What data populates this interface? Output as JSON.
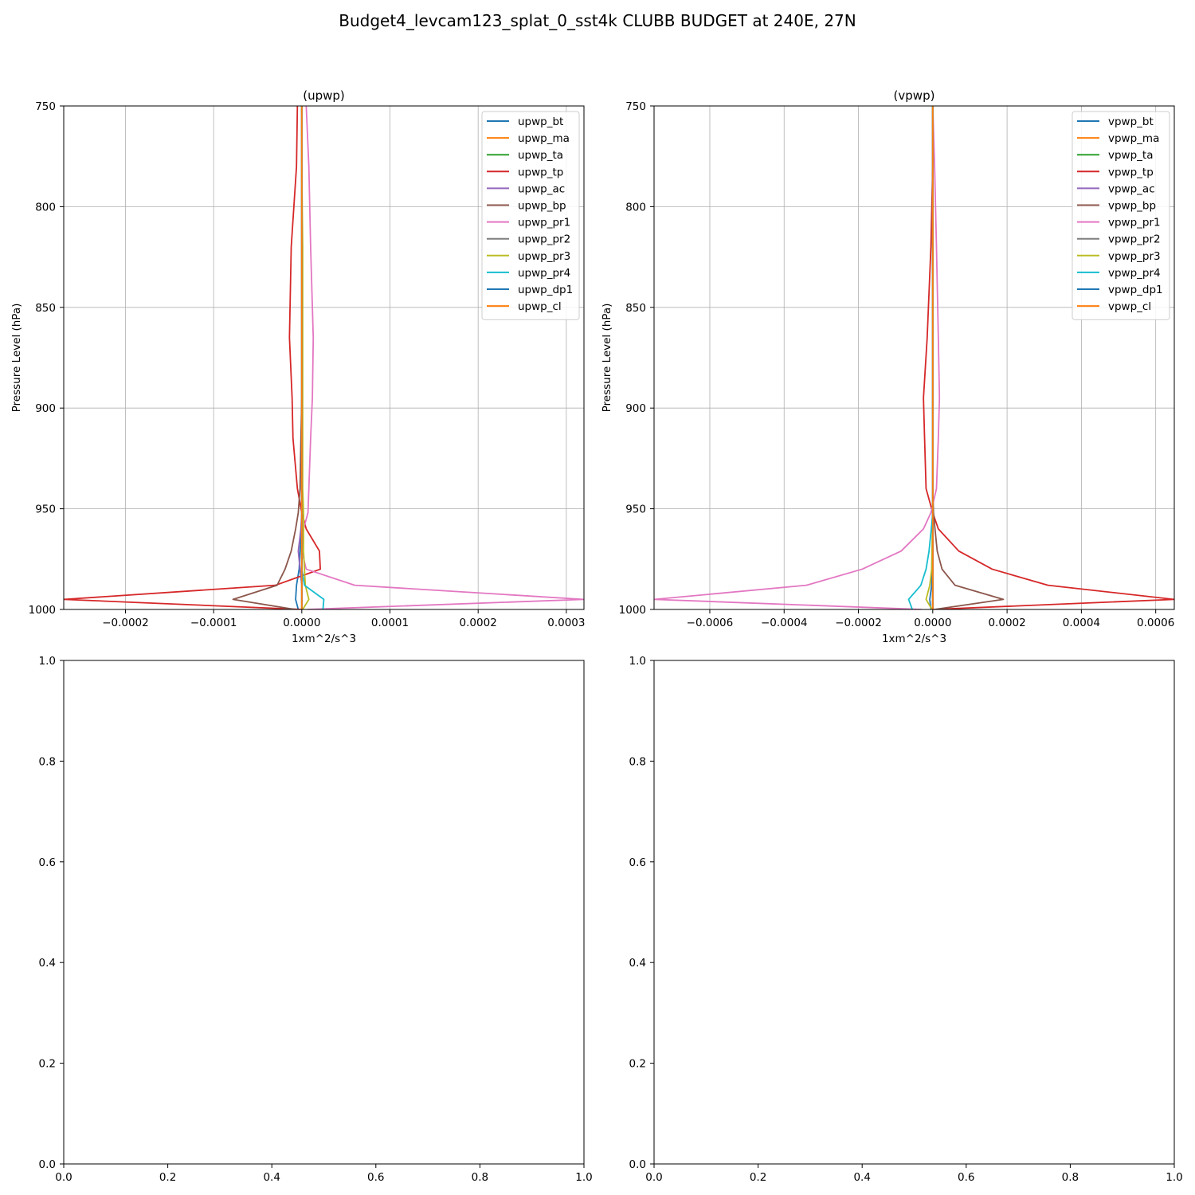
{
  "figure_title": "Budget4_levcam123_splat_0_sst4k CLUBB BUDGET at 240E, 27N",
  "colors": [
    "#1f77b4",
    "#ff7f0e",
    "#2ca02c",
    "#d62728",
    "#9467bd",
    "#8c564b",
    "#e377c2",
    "#7f7f7f",
    "#bcbd22",
    "#17becf",
    "#1f77b4",
    "#ff7f0e"
  ],
  "chart_data": [
    {
      "type": "line",
      "title": "(upwp)",
      "xlabel": "1xm^2/s^3",
      "ylabel": "Pressure Level (hPa)",
      "xlim": [
        -0.00027,
        0.00032
      ],
      "ylim": [
        1000,
        750
      ],
      "xticks": [
        -0.0002,
        -0.0001,
        0.0,
        0.0001,
        0.0002,
        0.0003
      ],
      "xtick_labels": [
        "−0.0002",
        "−0.0001",
        "0.0000",
        "0.0001",
        "0.0002",
        "0.0003"
      ],
      "yticks": [
        750,
        800,
        850,
        900,
        950,
        1000
      ],
      "ytick_labels": [
        "750",
        "800",
        "850",
        "900",
        "950",
        "1000"
      ],
      "grid": true,
      "legend_location": "upper right",
      "levels": [
        750,
        780,
        820,
        865,
        895,
        915,
        940,
        952,
        960,
        971,
        980,
        988,
        995,
        1000
      ],
      "series": [
        {
          "name": "upwp_bt",
          "values": [
            0,
            0,
            0,
            0,
            0,
            0,
            0,
            0,
            0,
            -2e-06,
            -3e-06,
            -6e-06,
            -7e-06,
            -4e-06
          ]
        },
        {
          "name": "upwp_ma",
          "values": [
            0,
            0,
            0,
            0,
            0,
            0,
            0,
            0,
            0,
            0,
            0,
            0,
            0,
            0
          ]
        },
        {
          "name": "upwp_ta",
          "values": [
            0,
            0,
            0,
            0,
            0,
            0,
            0,
            0,
            0,
            0,
            0,
            0,
            0,
            0
          ]
        },
        {
          "name": "upwp_tp",
          "values": [
            -5e-06,
            -6e-06,
            -1.2e-05,
            -1.4e-05,
            -1.1e-05,
            -1e-05,
            -5e-06,
            0,
            5e-06,
            2e-05,
            2.1e-05,
            -3e-05,
            -0.00027,
            0
          ]
        },
        {
          "name": "upwp_ac",
          "values": [
            0,
            0,
            0,
            0,
            0,
            0,
            0,
            0,
            -1e-06,
            -4e-06,
            -2e-06,
            0,
            0,
            0
          ]
        },
        {
          "name": "upwp_bp",
          "values": [
            0,
            0,
            0,
            0,
            0,
            -1e-06,
            -2e-06,
            -4e-06,
            -7e-06,
            -1.2e-05,
            -1.9e-05,
            -2.8e-05,
            -7.8e-05,
            -8e-06
          ]
        },
        {
          "name": "upwp_pr1",
          "values": [
            5e-06,
            8e-06,
            1e-05,
            1.3e-05,
            1.2e-05,
            1e-05,
            8e-06,
            7e-06,
            2e-06,
            0,
            5e-06,
            6e-05,
            0.00032,
            6e-06
          ]
        },
        {
          "name": "upwp_pr2",
          "values": [
            0,
            0,
            0,
            0,
            0,
            0,
            0,
            0,
            0,
            0,
            0,
            0,
            0,
            0
          ]
        },
        {
          "name": "upwp_pr3",
          "values": [
            0,
            0,
            1e-06,
            1e-06,
            1e-06,
            1e-06,
            1e-06,
            2e-06,
            2e-06,
            2e-06,
            3e-06,
            4e-06,
            8e-06,
            1e-06
          ]
        },
        {
          "name": "upwp_pr4",
          "values": [
            0,
            0,
            0,
            0,
            0,
            0,
            0,
            0,
            0,
            0,
            0,
            3e-06,
            2.5e-05,
            2.4e-05
          ]
        },
        {
          "name": "upwp_dp1",
          "values": [
            0,
            0,
            0,
            0,
            0,
            0,
            0,
            0,
            0,
            0,
            0,
            0,
            0,
            0
          ]
        },
        {
          "name": "upwp_cl",
          "values": [
            0,
            0,
            0,
            0,
            0,
            0,
            0,
            0,
            0,
            0,
            0,
            0,
            0,
            0
          ]
        }
      ]
    },
    {
      "type": "line",
      "title": "(vpwp)",
      "xlabel": "1xm^2/s^3",
      "ylabel": "Pressure Level (hPa)",
      "xlim": [
        -0.00075,
        0.00065
      ],
      "ylim": [
        1000,
        750
      ],
      "xticks": [
        -0.0006,
        -0.0004,
        -0.0002,
        0.0,
        0.0002,
        0.0004,
        0.0006
      ],
      "xtick_labels": [
        "−0.0006",
        "−0.0004",
        "−0.0002",
        "0.0000",
        "0.0002",
        "0.0004",
        "0.0006"
      ],
      "yticks": [
        750,
        800,
        850,
        900,
        950,
        1000
      ],
      "ytick_labels": [
        "750",
        "800",
        "850",
        "900",
        "950",
        "1000"
      ],
      "grid": true,
      "legend_location": "upper right",
      "levels": [
        750,
        780,
        820,
        865,
        895,
        915,
        940,
        952,
        960,
        971,
        980,
        988,
        995,
        1000
      ],
      "series": [
        {
          "name": "vpwp_bt",
          "values": [
            0,
            0,
            0,
            0,
            0,
            0,
            0,
            0,
            0,
            0,
            -2e-06,
            -3e-06,
            -8e-06,
            -5e-06
          ]
        },
        {
          "name": "vpwp_ma",
          "values": [
            0,
            0,
            0,
            0,
            0,
            0,
            0,
            0,
            0,
            0,
            0,
            0,
            0,
            0
          ]
        },
        {
          "name": "vpwp_ta",
          "values": [
            0,
            0,
            0,
            0,
            0,
            0,
            0,
            0,
            0,
            0,
            0,
            0,
            0,
            0
          ]
        },
        {
          "name": "vpwp_tp",
          "values": [
            0,
            0,
            -5e-06,
            -1.5e-05,
            -2.5e-05,
            -2.2e-05,
            -1.8e-05,
            0,
            1.5e-05,
            7e-05,
            0.00016,
            0.00031,
            0.00065,
            0
          ]
        },
        {
          "name": "vpwp_ac",
          "values": [
            0,
            0,
            0,
            0,
            0,
            0,
            0,
            0,
            0,
            0,
            0,
            0,
            0,
            0
          ]
        },
        {
          "name": "vpwp_bp",
          "values": [
            0,
            0,
            0,
            0,
            0,
            0,
            0,
            2e-06,
            6e-06,
            1.2e-05,
            2.5e-05,
            6e-05,
            0.00019,
            5e-06
          ]
        },
        {
          "name": "vpwp_pr1",
          "values": [
            0,
            5e-06,
            1e-05,
            1.5e-05,
            1.8e-05,
            1.5e-05,
            1e-05,
            -5e-06,
            -2.5e-05,
            -8.5e-05,
            -0.00019,
            -0.00034,
            -0.00075,
            -3e-05
          ]
        },
        {
          "name": "vpwp_pr2",
          "values": [
            0,
            0,
            0,
            0,
            0,
            0,
            0,
            0,
            0,
            0,
            0,
            0,
            0,
            0
          ]
        },
        {
          "name": "vpwp_pr3",
          "values": [
            0,
            0,
            0,
            0,
            0,
            0,
            0,
            0,
            -1e-06,
            -2e-06,
            -3e-06,
            -8e-06,
            -1.8e-05,
            -2e-06
          ]
        },
        {
          "name": "vpwp_pr4",
          "values": [
            0,
            0,
            0,
            0,
            0,
            0,
            0,
            0,
            -4e-06,
            -1e-05,
            -1.8e-05,
            -3.2e-05,
            -6.5e-05,
            -5.5e-05
          ]
        },
        {
          "name": "vpwp_dp1",
          "values": [
            0,
            0,
            0,
            0,
            0,
            0,
            0,
            0,
            0,
            0,
            0,
            0,
            0,
            0
          ]
        },
        {
          "name": "vpwp_cl",
          "values": [
            0,
            0,
            0,
            0,
            0,
            0,
            0,
            0,
            0,
            0,
            0,
            0,
            0,
            0
          ]
        }
      ]
    },
    {
      "type": "line",
      "xlim": [
        0,
        1
      ],
      "ylim": [
        0,
        1
      ],
      "xticks": [
        0.0,
        0.2,
        0.4,
        0.6,
        0.8,
        1.0
      ],
      "xtick_labels": [
        "0.0",
        "0.2",
        "0.4",
        "0.6",
        "0.8",
        "1.0"
      ],
      "yticks": [
        0.0,
        0.2,
        0.4,
        0.6,
        0.8,
        1.0
      ],
      "ytick_labels": [
        "0.0",
        "0.2",
        "0.4",
        "0.6",
        "0.8",
        "1.0"
      ],
      "grid": false,
      "series": []
    },
    {
      "type": "line",
      "xlim": [
        0,
        1
      ],
      "ylim": [
        0,
        1
      ],
      "xticks": [
        0.0,
        0.2,
        0.4,
        0.6,
        0.8,
        1.0
      ],
      "xtick_labels": [
        "0.0",
        "0.2",
        "0.4",
        "0.6",
        "0.8",
        "1.0"
      ],
      "yticks": [
        0.0,
        0.2,
        0.4,
        0.6,
        0.8,
        1.0
      ],
      "ytick_labels": [
        "0.0",
        "0.2",
        "0.4",
        "0.6",
        "0.8",
        "1.0"
      ],
      "grid": false,
      "series": []
    }
  ]
}
